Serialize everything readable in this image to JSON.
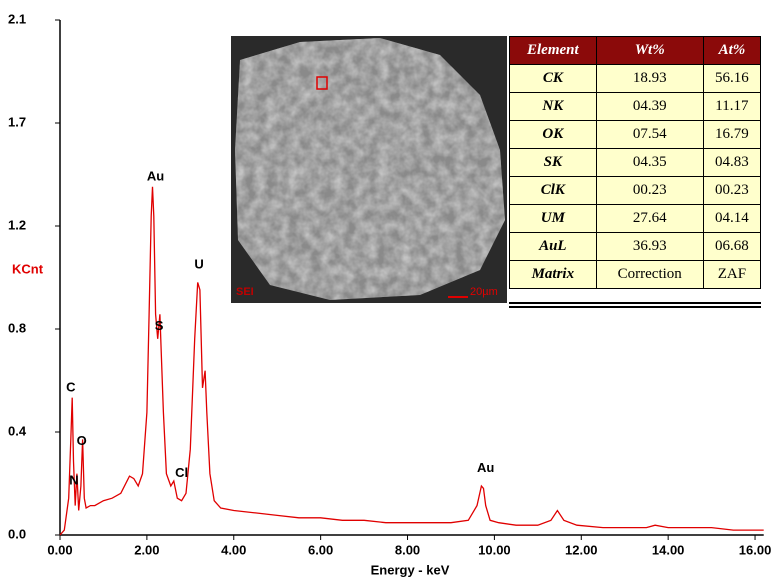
{
  "chart_data": {
    "type": "line",
    "x_label": "Energy - keV",
    "y_label": "KCnt",
    "color": "#e00000",
    "xlim": [
      0,
      16.2
    ],
    "ylim": [
      0,
      2.1
    ],
    "xticks": [
      {
        "value": 0,
        "label": "0.00"
      },
      {
        "value": 2,
        "label": "2.00"
      },
      {
        "value": 4,
        "label": "4.00"
      },
      {
        "value": 6,
        "label": "6.00"
      },
      {
        "value": 8,
        "label": "8.00"
      },
      {
        "value": 10,
        "label": "10.00"
      },
      {
        "value": 12,
        "label": "12.00"
      },
      {
        "value": 14,
        "label": "14.00"
      },
      {
        "value": 16,
        "label": "16.00"
      }
    ],
    "yticks": [
      {
        "value": 0,
        "label": "0.0"
      },
      {
        "value": 0.42,
        "label": "0.4"
      },
      {
        "value": 0.84,
        "label": "0.8"
      },
      {
        "value": 1.26,
        "label": "1.2"
      },
      {
        "value": 1.68,
        "label": "1.7"
      },
      {
        "value": 2.1,
        "label": "2.1"
      }
    ],
    "x": [
      0.0,
      0.1,
      0.2,
      0.25,
      0.28,
      0.31,
      0.35,
      0.39,
      0.43,
      0.48,
      0.52,
      0.56,
      0.6,
      0.7,
      0.8,
      1.0,
      1.2,
      1.4,
      1.6,
      1.7,
      1.8,
      1.9,
      2.0,
      2.05,
      2.1,
      2.13,
      2.16,
      2.2,
      2.25,
      2.3,
      2.33,
      2.38,
      2.45,
      2.55,
      2.62,
      2.7,
      2.8,
      2.9,
      3.0,
      3.1,
      3.17,
      3.22,
      3.28,
      3.34,
      3.38,
      3.45,
      3.55,
      3.7,
      4.0,
      4.5,
      5.0,
      5.5,
      6.0,
      6.5,
      7.0,
      7.5,
      8.0,
      8.5,
      9.0,
      9.4,
      9.6,
      9.7,
      9.75,
      9.8,
      9.9,
      10.1,
      10.5,
      11.0,
      11.3,
      11.45,
      11.6,
      11.9,
      12.5,
      13.0,
      13.5,
      13.7,
      14.0,
      14.5,
      15.0,
      15.5,
      16.0,
      16.2
    ],
    "values": [
      0.0,
      0.02,
      0.15,
      0.4,
      0.56,
      0.3,
      0.12,
      0.25,
      0.1,
      0.2,
      0.39,
      0.15,
      0.11,
      0.12,
      0.12,
      0.14,
      0.15,
      0.17,
      0.24,
      0.23,
      0.2,
      0.25,
      0.5,
      0.9,
      1.3,
      1.42,
      1.3,
      0.9,
      0.8,
      0.9,
      0.75,
      0.5,
      0.25,
      0.2,
      0.22,
      0.15,
      0.14,
      0.17,
      0.35,
      0.8,
      1.03,
      1.0,
      0.6,
      0.67,
      0.5,
      0.25,
      0.14,
      0.11,
      0.1,
      0.09,
      0.08,
      0.07,
      0.07,
      0.06,
      0.06,
      0.05,
      0.05,
      0.05,
      0.05,
      0.06,
      0.12,
      0.2,
      0.19,
      0.12,
      0.06,
      0.05,
      0.04,
      0.04,
      0.06,
      0.1,
      0.06,
      0.04,
      0.03,
      0.03,
      0.03,
      0.04,
      0.03,
      0.03,
      0.03,
      0.02,
      0.02,
      0.02
    ],
    "annotations": [
      {
        "text": "C",
        "x": 0.25,
        "y": 0.6
      },
      {
        "text": "N",
        "x": 0.32,
        "y": 0.22
      },
      {
        "text": "O",
        "x": 0.5,
        "y": 0.38
      },
      {
        "text": "Au",
        "x": 2.2,
        "y": 1.46
      },
      {
        "text": "S",
        "x": 2.28,
        "y": 0.85
      },
      {
        "text": "Cl",
        "x": 2.8,
        "y": 0.25
      },
      {
        "text": "U",
        "x": 3.2,
        "y": 1.1
      },
      {
        "text": "Au",
        "x": 9.8,
        "y": 0.27
      }
    ]
  },
  "inset": {
    "mode": "SEI",
    "scale": "20µm"
  },
  "table": {
    "header": [
      "Element",
      "Wt%",
      "At%"
    ],
    "rows": [
      [
        "CK",
        "18.93",
        "56.16"
      ],
      [
        "NK",
        "04.39",
        "11.17"
      ],
      [
        "OK",
        "07.54",
        "16.79"
      ],
      [
        "SK",
        "04.35",
        "04.83"
      ],
      [
        "ClK",
        "00.23",
        "00.23"
      ],
      [
        "UM",
        "27.64",
        "04.14"
      ],
      [
        "AuL",
        "36.93",
        "06.68"
      ],
      [
        "Matrix",
        "Correction",
        "ZAF"
      ]
    ]
  }
}
